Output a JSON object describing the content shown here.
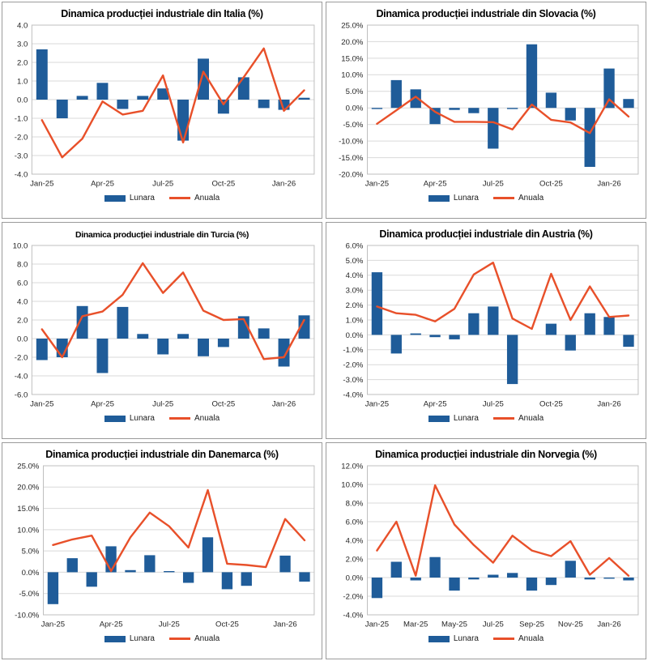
{
  "colors": {
    "bar": "#1F5C99",
    "line": "#E8502A",
    "grid": "#D9D9D9",
    "plot_border": "#BFBFBF",
    "tick_text": "#262626",
    "title_text": "#000000"
  },
  "chart_data": [
    {
      "type": "bar+line",
      "title": "Dinamica producției industriale din Italia (%)",
      "title_small": false,
      "categories": [
        "Jan-25",
        "Feb-25",
        "Mar-25",
        "Apr-25",
        "May-25",
        "Jun-25",
        "Jul-25",
        "Aug-25",
        "Sep-25",
        "Oct-25",
        "Nov-25",
        "Dec-25",
        "Jan-26",
        "Feb-26"
      ],
      "x_tick_labels": [
        "Jan-25",
        "Apr-25",
        "Jul-25",
        "Oct-25",
        "Jan-26"
      ],
      "x_tick_every": 3,
      "y_min": -4,
      "y_max": 4,
      "y_step": 1,
      "y_format": "plain",
      "grid": true,
      "legend_position": "bottom",
      "series": [
        {
          "name": "Lunara",
          "type": "bar",
          "values": [
            2.7,
            -1.0,
            0.2,
            0.9,
            -0.5,
            0.2,
            0.6,
            -2.2,
            2.2,
            -0.75,
            1.2,
            -0.45,
            -0.55,
            0.1
          ]
        },
        {
          "name": "Anuala",
          "type": "line",
          "values": [
            -1.1,
            -3.1,
            -2.1,
            -0.1,
            -0.8,
            -0.6,
            1.3,
            -2.3,
            1.5,
            -0.25,
            1.2,
            2.75,
            -0.6,
            0.5
          ]
        }
      ]
    },
    {
      "type": "bar+line",
      "title": "Dinamica producției industriale din Slovacia (%)",
      "title_small": false,
      "categories": [
        "Jan-25",
        "Feb-25",
        "Mar-25",
        "Apr-25",
        "May-25",
        "Jun-25",
        "Jul-25",
        "Aug-25",
        "Sep-25",
        "Oct-25",
        "Nov-25",
        "Dec-25",
        "Jan-26",
        "Feb-26"
      ],
      "x_tick_labels": [
        "Jan-25",
        "Apr-25",
        "Jul-25",
        "Oct-25",
        "Jan-26"
      ],
      "x_tick_every": 3,
      "y_min": -20,
      "y_max": 25,
      "y_step": 5,
      "y_format": "percent",
      "grid": true,
      "legend_position": "bottom",
      "series": [
        {
          "name": "Lunara",
          "type": "bar",
          "values": [
            -0.2,
            8.4,
            5.6,
            -4.9,
            -0.6,
            -1.6,
            -12.3,
            -0.2,
            19.2,
            4.6,
            -3.8,
            -17.8,
            11.9,
            2.7
          ]
        },
        {
          "name": "Anuala",
          "type": "line",
          "values": [
            -4.8,
            -0.7,
            3.4,
            -1.2,
            -4.2,
            -4.2,
            -4.3,
            -6.5,
            1.0,
            -3.6,
            -4.4,
            -7.6,
            2.6,
            -2.6
          ]
        }
      ]
    },
    {
      "type": "bar+line",
      "title": "Dinamica producției industriale din Turcia (%)",
      "title_small": true,
      "categories": [
        "Jan-25",
        "Feb-25",
        "Mar-25",
        "Apr-25",
        "May-25",
        "Jun-25",
        "Jul-25",
        "Aug-25",
        "Sep-25",
        "Oct-25",
        "Nov-25",
        "Dec-25",
        "Jan-26",
        "Feb-26"
      ],
      "x_tick_labels": [
        "Jan-25",
        "Apr-25",
        "Jul-25",
        "Oct-25",
        "Jan-26"
      ],
      "x_tick_every": 3,
      "y_min": -6,
      "y_max": 10,
      "y_step": 2,
      "y_format": "plain",
      "grid": true,
      "legend_position": "bottom",
      "series": [
        {
          "name": "Lunara",
          "type": "bar",
          "values": [
            -2.3,
            -2.0,
            3.5,
            -3.7,
            3.4,
            0.5,
            -1.7,
            0.5,
            -1.9,
            -0.9,
            2.4,
            1.1,
            -3.0,
            2.5
          ]
        },
        {
          "name": "Anuala",
          "type": "line",
          "values": [
            1.0,
            -2.0,
            2.4,
            2.9,
            4.7,
            8.1,
            4.9,
            7.1,
            3.0,
            2.0,
            2.1,
            -2.2,
            -2.0,
            2.0
          ]
        }
      ]
    },
    {
      "type": "bar+line",
      "title": "Dinamica producției industriale din Austria (%)",
      "title_small": false,
      "categories": [
        "Jan-25",
        "Feb-25",
        "Mar-25",
        "Apr-25",
        "May-25",
        "Jun-25",
        "Jul-25",
        "Aug-25",
        "Sep-25",
        "Oct-25",
        "Nov-25",
        "Dec-25",
        "Jan-26",
        "Feb-26"
      ],
      "x_tick_labels": [
        "Jan-25",
        "Apr-25",
        "Jul-25",
        "Oct-25",
        "Jan-26"
      ],
      "x_tick_every": 3,
      "y_min": -4,
      "y_max": 6,
      "y_step": 1,
      "y_format": "percent",
      "grid": true,
      "legend_position": "bottom",
      "series": [
        {
          "name": "Lunara",
          "type": "bar",
          "values": [
            4.2,
            -1.25,
            0.1,
            -0.15,
            -0.3,
            1.45,
            1.9,
            -3.3,
            0.0,
            0.75,
            -1.05,
            1.45,
            1.2,
            -0.8
          ]
        },
        {
          "name": "Anuala",
          "type": "line",
          "values": [
            1.9,
            1.45,
            1.35,
            0.9,
            1.75,
            4.05,
            4.85,
            1.1,
            0.4,
            4.1,
            1.0,
            3.25,
            1.2,
            1.3
          ]
        }
      ]
    },
    {
      "type": "bar+line",
      "title": "Dinamica producției industriale din Danemarca (%)",
      "title_small": false,
      "categories": [
        "Jan-25",
        "Feb-25",
        "Mar-25",
        "Apr-25",
        "May-25",
        "Jun-25",
        "Jul-25",
        "Aug-25",
        "Sep-25",
        "Oct-25",
        "Nov-25",
        "Dec-25",
        "Jan-26",
        "Feb-26"
      ],
      "x_tick_labels": [
        "Jan-25",
        "Apr-25",
        "Jul-25",
        "Oct-25",
        "Jan-26"
      ],
      "x_tick_every": 3,
      "y_min": -10,
      "y_max": 25,
      "y_step": 5,
      "y_format": "percent",
      "grid": true,
      "legend_position": "bottom",
      "series": [
        {
          "name": "Lunara",
          "type": "bar",
          "values": [
            -7.5,
            3.3,
            -3.4,
            6.1,
            0.5,
            4.0,
            0.2,
            -2.5,
            8.2,
            -4.0,
            -3.2,
            0.0,
            3.9,
            -2.2
          ]
        },
        {
          "name": "Anuala",
          "type": "line",
          "values": [
            6.4,
            7.7,
            8.6,
            0.3,
            8.2,
            14.0,
            10.8,
            5.8,
            19.3,
            2.0,
            1.7,
            1.2,
            12.5,
            7.5
          ]
        }
      ]
    },
    {
      "type": "bar+line",
      "title": "Dinamica producției industriale din Norvegia (%)",
      "title_small": false,
      "categories": [
        "Jan-25",
        "Feb-25",
        "Mar-25",
        "Apr-25",
        "May-25",
        "Jun-25",
        "Jul-25",
        "Aug-25",
        "Sep-25",
        "Oct-25",
        "Nov-25",
        "Dec-25",
        "Jan-26",
        "Feb-26"
      ],
      "x_tick_labels": [
        "Jan-25",
        "Mar-25",
        "May-25",
        "Jul-25",
        "Sep-25",
        "Nov-25",
        "Jan-26"
      ],
      "x_tick_every": 2,
      "y_min": -4,
      "y_max": 12,
      "y_step": 2,
      "y_format": "percent",
      "grid": true,
      "legend_position": "bottom",
      "series": [
        {
          "name": "Lunara",
          "type": "bar",
          "values": [
            -2.2,
            1.7,
            -0.3,
            2.2,
            -1.4,
            -0.2,
            0.3,
            0.5,
            -1.4,
            -0.8,
            1.8,
            -0.2,
            -0.1,
            -0.3
          ]
        },
        {
          "name": "Anuala",
          "type": "line",
          "values": [
            2.9,
            6.0,
            0.2,
            9.9,
            5.7,
            3.5,
            1.6,
            4.5,
            2.9,
            2.3,
            3.9,
            0.3,
            2.1,
            0.2
          ]
        }
      ]
    }
  ]
}
